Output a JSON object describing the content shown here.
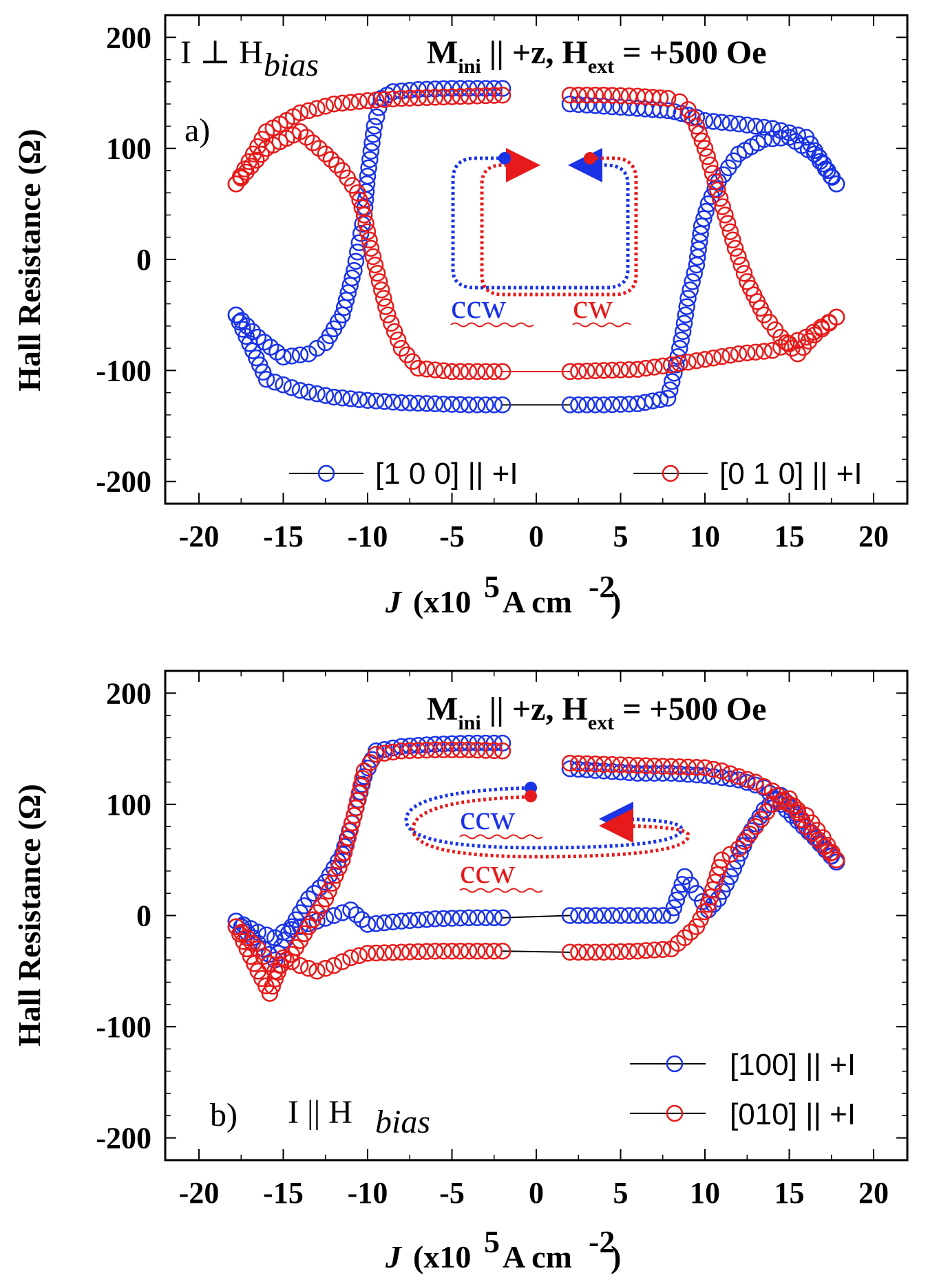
{
  "figure": {
    "panels": [
      {
        "label": "a)",
        "orientation_text": "I ⊥ H",
        "orientation_sub": "bias",
        "annotation": {
          "m": "M",
          "m_sub": "ini",
          "rest1": " || +z,  H",
          "h_sub": "ext",
          "rest2": " = +500 Oe"
        },
        "rotation_labels": [
          {
            "text": "ccw",
            "color": "#1a33e6"
          },
          {
            "text": "cw",
            "color": "#e61a1a"
          }
        ],
        "legend": [
          {
            "text": "[1 0 0] || +I",
            "color": "#1a33e6"
          },
          {
            "text": "[0 1 0] || +I",
            "color": "#e61a1a"
          }
        ]
      },
      {
        "label": "b)",
        "orientation_text": "I || H",
        "orientation_sub": "bias",
        "annotation": {
          "m": "M",
          "m_sub": "ini",
          "rest1": " || +z,  H",
          "h_sub": "ext",
          "rest2": " = +500 Oe"
        },
        "rotation_labels": [
          {
            "text": "ccw",
            "color": "#1a33e6"
          },
          {
            "text": "ccw",
            "color": "#e61a1a"
          }
        ],
        "legend": [
          {
            "text": "[100] || +I",
            "color": "#1a33e6"
          },
          {
            "text": "[010] || +I",
            "color": "#e61a1a"
          }
        ]
      }
    ]
  },
  "chart_data": [
    {
      "type": "scatter",
      "title": "a) I ⊥ Hbias",
      "xlabel": "J (x10^5 A cm^-2)",
      "ylabel": "Hall Resistance (Ω)",
      "xlim": [
        -22,
        22
      ],
      "ylim": [
        -220,
        220
      ],
      "xticks": [
        -20,
        -15,
        -10,
        -5,
        0,
        5,
        10,
        15,
        20
      ],
      "yticks": [
        -200,
        -100,
        0,
        100,
        200
      ],
      "xtick_labels": [
        "-20",
        "-15",
        "-10",
        "-5",
        "0",
        "5",
        "10",
        "15",
        "20"
      ],
      "ytick_labels": [
        "-200",
        "-100",
        "0",
        "100",
        "200"
      ],
      "series": [
        {
          "name": "[1 0 0] || +I",
          "color": "#1a33e6",
          "branches": [
            {
              "x": [
                -2,
                -4,
                -6,
                -8,
                -10,
                -12,
                -14,
                -16,
                -17.8
              ],
              "y": [
                -131,
                -131,
                -130,
                -129,
                -127,
                -124,
                -118,
                -108,
                -50
              ]
            },
            {
              "x": [
                -17.8,
                -16.5,
                -15,
                -13.5,
                -12.5,
                -11.5,
                -10.8,
                -10.5,
                -10.2,
                -10,
                -9.6,
                -9.2,
                -8.5,
                -7,
                -5,
                -3,
                -2
              ],
              "y": [
                -50,
                -70,
                -88,
                -85,
                -75,
                -50,
                -10,
                15,
                40,
                75,
                120,
                145,
                151,
                153,
                154,
                154,
                154
              ]
            },
            {
              "x": [
                2,
                4,
                6,
                7.8,
                8.2,
                9,
                9.5,
                10,
                12,
                14,
                16,
                17.8
              ],
              "y": [
                140,
                138,
                136,
                134,
                133,
                130,
                128,
                125,
                122,
                118,
                110,
                68
              ]
            },
            {
              "x": [
                17.8,
                16.5,
                15,
                13.5,
                12,
                10.8,
                10.2,
                9.8,
                9.5,
                9,
                8.7,
                8.3,
                7.8,
                6,
                4,
                2
              ],
              "y": [
                68,
                95,
                110,
                108,
                95,
                70,
                50,
                30,
                -5,
                -35,
                -65,
                -95,
                -125,
                -130,
                -131,
                -131
              ]
            }
          ],
          "connectors": [
            {
              "x": [
                -2,
                2
              ],
              "y": [
                -131,
                -131
              ]
            }
          ]
        },
        {
          "name": "[0 1 0] || +I",
          "color": "#e61a1a",
          "branches": [
            {
              "x": [
                -2,
                -4,
                -6,
                -8,
                -10,
                -12,
                -14,
                -16,
                -17.8
              ],
              "y": [
                148,
                147,
                146,
                145,
                143,
                140,
                132,
                115,
                68
              ]
            },
            {
              "x": [
                -17.8,
                -16,
                -14,
                -12.5,
                -11.5,
                -10.6,
                -10.2,
                -9.8,
                -9.3,
                -8.8,
                -8,
                -7,
                -5,
                -3,
                -2
              ],
              "y": [
                68,
                100,
                115,
                95,
                80,
                60,
                40,
                10,
                -20,
                -50,
                -80,
                -98,
                -101,
                -101,
                -101
              ]
            },
            {
              "x": [
                2,
                4,
                6,
                8,
                10,
                12,
                14,
                16,
                17.8
              ],
              "y": [
                -101,
                -100,
                -99,
                -95,
                -90,
                -85,
                -82,
                -70,
                -52
              ]
            },
            {
              "x": [
                17.8,
                16.5,
                15.5,
                14.5,
                13.5,
                12.5,
                11.8,
                11.2,
                10.6,
                10,
                9.5,
                9,
                8.5,
                7.8,
                6,
                4,
                2
              ],
              "y": [
                -52,
                -68,
                -85,
                -70,
                -50,
                -20,
                10,
                40,
                70,
                100,
                120,
                135,
                142,
                145,
                147,
                148,
                148
              ]
            }
          ],
          "connectors": [
            {
              "x": [
                -2,
                2
              ],
              "y": [
                -101,
                -101
              ]
            }
          ]
        }
      ]
    },
    {
      "type": "scatter",
      "title": "b) I || Hbias",
      "xlabel": "J (x10^5 A cm^-2)",
      "ylabel": "Hall Resistance (Ω)",
      "xlim": [
        -22,
        22
      ],
      "ylim": [
        -220,
        220
      ],
      "xticks": [
        -20,
        -15,
        -10,
        -5,
        0,
        5,
        10,
        15,
        20
      ],
      "yticks": [
        -200,
        -100,
        0,
        100,
        200
      ],
      "xtick_labels": [
        "-20",
        "-15",
        "-10",
        "-5",
        "0",
        "5",
        "10",
        "15",
        "20"
      ],
      "ytick_labels": [
        "-200",
        "-100",
        "0",
        "100",
        "200"
      ],
      "series": [
        {
          "name": "[100] || +I",
          "color": "#1a33e6",
          "branches": [
            {
              "x": [
                -2,
                -4,
                -6,
                -8,
                -10,
                -11,
                -12,
                -13,
                -14,
                -15,
                -15.5,
                -16.5,
                -17.8
              ],
              "y": [
                -2,
                -2,
                -3,
                -5,
                -8,
                5,
                0,
                -5,
                -10,
                -15,
                -20,
                -15,
                -5
              ]
            },
            {
              "x": [
                -17.8,
                -16.5,
                -15.5,
                -14.5,
                -13.5,
                -12.5,
                -11.5,
                -10.8,
                -10.2,
                -9.5,
                -8,
                -6,
                -4,
                -2
              ],
              "y": [
                -5,
                -25,
                -40,
                -10,
                15,
                30,
                55,
                90,
                125,
                148,
                152,
                154,
                155,
                155
              ]
            },
            {
              "x": [
                2,
                4,
                6,
                8,
                10,
                12,
                13.5,
                14.5,
                15.5,
                16.5,
                17.8
              ],
              "y": [
                132,
                130,
                128,
                128,
                126,
                122,
                115,
                100,
                85,
                70,
                48
              ]
            },
            {
              "x": [
                17.8,
                16,
                14.5,
                13.5,
                12.5,
                11.5,
                10.8,
                10.2,
                9.5,
                8.8,
                8,
                6,
                4,
                2
              ],
              "y": [
                48,
                80,
                108,
                95,
                70,
                35,
                15,
                5,
                20,
                35,
                0,
                0,
                0,
                0
              ]
            }
          ],
          "connectors": [
            {
              "x": [
                -2,
                2
              ],
              "y": [
                -2,
                0
              ]
            }
          ]
        },
        {
          "name": "[010] || +I",
          "color": "#e61a1a",
          "branches": [
            {
              "x": [
                -2,
                -4,
                -6,
                -8,
                -10,
                -11,
                -12,
                -13,
                -14,
                -15,
                -15.8,
                -16.5,
                -17.8
              ],
              "y": [
                -32,
                -32,
                -32,
                -33,
                -34,
                -38,
                -45,
                -50,
                -45,
                -38,
                -70,
                -50,
                -10
              ]
            },
            {
              "x": [
                -17.8,
                -16.5,
                -15.5,
                -14.5,
                -13.5,
                -12.5,
                -11.5,
                -10.8,
                -10.2,
                -9.5,
                -8,
                -6,
                -4,
                -2
              ],
              "y": [
                -10,
                -30,
                -50,
                -35,
                -10,
                15,
                50,
                90,
                130,
                145,
                148,
                149,
                149,
                148
              ]
            },
            {
              "x": [
                2,
                4,
                6,
                8,
                10,
                11,
                12,
                13,
                14,
                15,
                16,
                17,
                17.8
              ],
              "y": [
                137,
                136,
                135,
                134,
                133,
                130,
                125,
                120,
                112,
                100,
                90,
                70,
                50
              ]
            },
            {
              "x": [
                17.8,
                16,
                15,
                14,
                13,
                12,
                11,
                10.2,
                9.5,
                8.8,
                8,
                6,
                4,
                2
              ],
              "y": [
                50,
                80,
                105,
                100,
                80,
                60,
                50,
                10,
                -10,
                -20,
                -30,
                -32,
                -33,
                -33
              ]
            }
          ],
          "connectors": [
            {
              "x": [
                -2,
                2
              ],
              "y": [
                -32,
                -33
              ]
            }
          ]
        }
      ]
    }
  ]
}
